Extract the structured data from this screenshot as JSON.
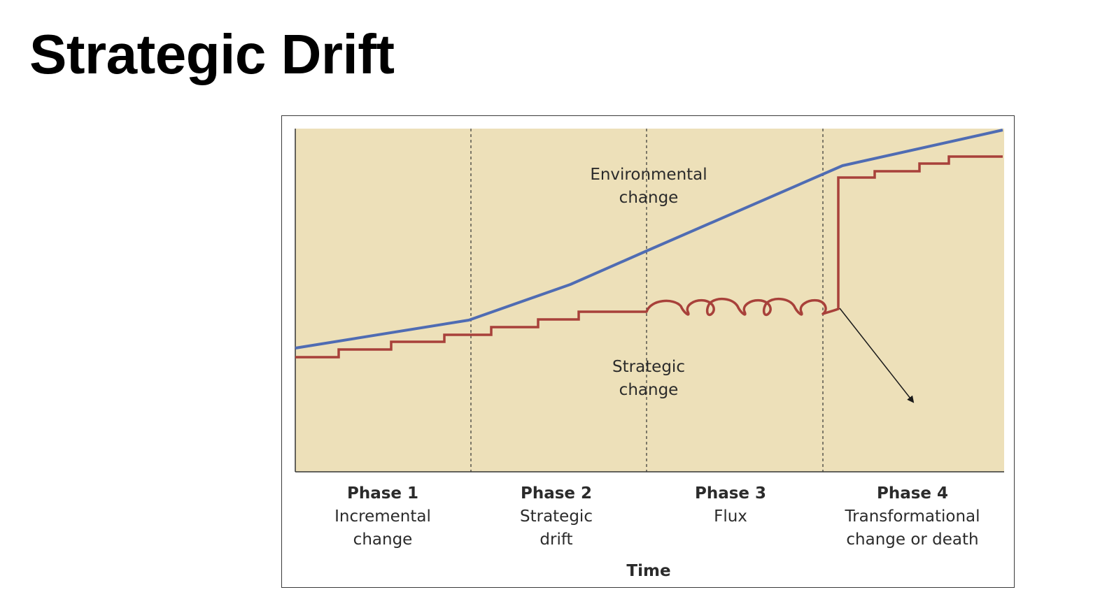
{
  "slide": {
    "title": "Strategic Drift"
  },
  "diagram": {
    "colors": {
      "panel": "#ede0b9",
      "environmental": "#4f6cb3",
      "strategic": "#a8413a",
      "text": "#2b2b2b"
    },
    "annotations": {
      "environmental_line1": "Environmental",
      "environmental_line2": "change",
      "strategic_line1": "Strategic",
      "strategic_line2": "change"
    },
    "phases": [
      {
        "title": "Phase 1",
        "line1": "Incremental",
        "line2": "change"
      },
      {
        "title": "Phase 2",
        "line1": "Strategic",
        "line2": "drift"
      },
      {
        "title": "Phase 3",
        "line1": "Flux",
        "line2": ""
      },
      {
        "title": "Phase 4",
        "line1": "Transformational",
        "line2": "change or death"
      }
    ],
    "x_axis_label": "Time"
  }
}
